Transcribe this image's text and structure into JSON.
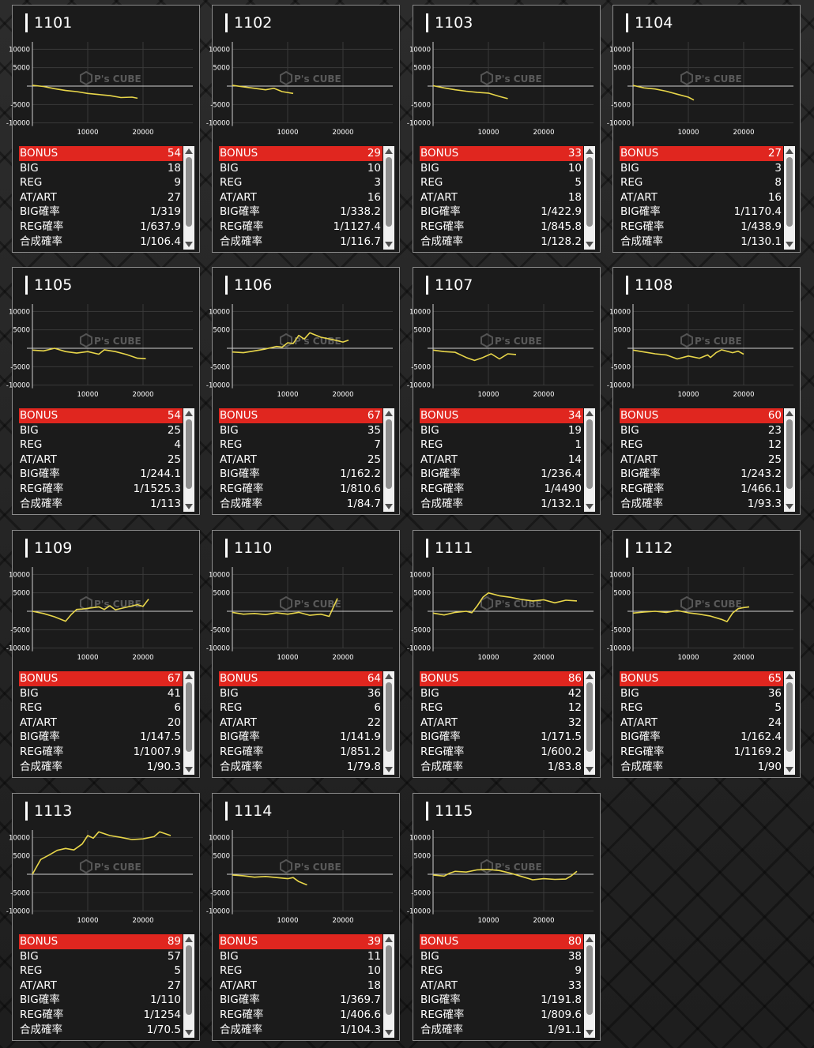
{
  "labels": {
    "bonus": "BONUS",
    "big": "BIG",
    "reg": "REG",
    "atart": "AT/ART",
    "big_rate": "BIG確率",
    "reg_rate": "REG確率",
    "total_rate": "合成確率"
  },
  "graph": {
    "y_ticks": [
      "10000",
      "5000",
      "-5000",
      "-10000"
    ],
    "x_ticks": [
      "10000",
      "20000"
    ],
    "watermark": "P's CUBE",
    "line_color": "#e8d64a",
    "bonus_color": "#e0261f"
  },
  "machines": [
    {
      "id": "1101",
      "bonus": "54",
      "big": "18",
      "reg": "9",
      "atart": "27",
      "big_rate": "1/319",
      "reg_rate": "1/637.9",
      "total_rate": "1/106.4",
      "series": [
        [
          0,
          200
        ],
        [
          2000,
          -100
        ],
        [
          4000,
          -700
        ],
        [
          6000,
          -1200
        ],
        [
          8000,
          -1500
        ],
        [
          10000,
          -2000
        ],
        [
          12000,
          -2300
        ],
        [
          14000,
          -2600
        ],
        [
          16000,
          -3100
        ],
        [
          18000,
          -3000
        ],
        [
          19000,
          -3300
        ]
      ]
    },
    {
      "id": "1102",
      "bonus": "29",
      "big": "10",
      "reg": "3",
      "atart": "16",
      "big_rate": "1/338.2",
      "reg_rate": "1/1127.4",
      "total_rate": "1/116.7",
      "series": [
        [
          0,
          200
        ],
        [
          2000,
          -200
        ],
        [
          4000,
          -600
        ],
        [
          6000,
          -1000
        ],
        [
          7500,
          -600
        ],
        [
          9000,
          -1500
        ],
        [
          11000,
          -2000
        ]
      ]
    },
    {
      "id": "1103",
      "bonus": "33",
      "big": "10",
      "reg": "5",
      "atart": "18",
      "big_rate": "1/422.9",
      "reg_rate": "1/845.8",
      "total_rate": "1/128.2",
      "series": [
        [
          0,
          100
        ],
        [
          2000,
          -500
        ],
        [
          4000,
          -1000
        ],
        [
          6000,
          -1400
        ],
        [
          8000,
          -1700
        ],
        [
          10000,
          -1900
        ],
        [
          12000,
          -2800
        ],
        [
          13500,
          -3400
        ]
      ]
    },
    {
      "id": "1104",
      "bonus": "27",
      "big": "3",
      "reg": "8",
      "atart": "16",
      "big_rate": "1/1170.4",
      "reg_rate": "1/438.9",
      "total_rate": "1/130.1",
      "series": [
        [
          0,
          200
        ],
        [
          2000,
          -500
        ],
        [
          4000,
          -800
        ],
        [
          6000,
          -1400
        ],
        [
          8000,
          -2200
        ],
        [
          10000,
          -3000
        ],
        [
          11000,
          -3800
        ]
      ]
    },
    {
      "id": "1105",
      "bonus": "54",
      "big": "25",
      "reg": "4",
      "atart": "25",
      "big_rate": "1/244.1",
      "reg_rate": "1/1525.3",
      "total_rate": "1/113",
      "series": [
        [
          0,
          -500
        ],
        [
          2000,
          -700
        ],
        [
          4000,
          0
        ],
        [
          6000,
          -900
        ],
        [
          8000,
          -1300
        ],
        [
          10000,
          -900
        ],
        [
          12000,
          -1600
        ],
        [
          13000,
          -400
        ],
        [
          15000,
          -900
        ],
        [
          17000,
          -1700
        ],
        [
          19000,
          -2700
        ],
        [
          20500,
          -2800
        ]
      ]
    },
    {
      "id": "1106",
      "bonus": "67",
      "big": "35",
      "reg": "7",
      "atart": "25",
      "big_rate": "1/162.2",
      "reg_rate": "1/810.6",
      "total_rate": "1/84.7",
      "series": [
        [
          0,
          -1000
        ],
        [
          2000,
          -1200
        ],
        [
          4000,
          -700
        ],
        [
          6000,
          -200
        ],
        [
          8000,
          500
        ],
        [
          9000,
          300
        ],
        [
          10000,
          1500
        ],
        [
          11000,
          1300
        ],
        [
          12000,
          3500
        ],
        [
          13000,
          2500
        ],
        [
          14000,
          4200
        ],
        [
          16000,
          3000
        ],
        [
          18000,
          2400
        ],
        [
          20000,
          1700
        ],
        [
          21000,
          2200
        ]
      ]
    },
    {
      "id": "1107",
      "bonus": "34",
      "big": "19",
      "reg": "1",
      "atart": "14",
      "big_rate": "1/236.4",
      "reg_rate": "1/4490",
      "total_rate": "1/132.1",
      "series": [
        [
          0,
          -500
        ],
        [
          2000,
          -900
        ],
        [
          4000,
          -1100
        ],
        [
          6000,
          -2500
        ],
        [
          7500,
          -3300
        ],
        [
          9000,
          -2500
        ],
        [
          10500,
          -1500
        ],
        [
          12000,
          -2900
        ],
        [
          13500,
          -1500
        ],
        [
          15000,
          -1700
        ]
      ]
    },
    {
      "id": "1108",
      "bonus": "60",
      "big": "23",
      "reg": "12",
      "atart": "25",
      "big_rate": "1/243.2",
      "reg_rate": "1/466.1",
      "total_rate": "1/93.3",
      "series": [
        [
          0,
          -500
        ],
        [
          2000,
          -1000
        ],
        [
          4000,
          -1500
        ],
        [
          6000,
          -1800
        ],
        [
          8000,
          -2900
        ],
        [
          10000,
          -2100
        ],
        [
          12000,
          -2700
        ],
        [
          13500,
          -1800
        ],
        [
          14000,
          -2500
        ],
        [
          15000,
          -1200
        ],
        [
          16000,
          -400
        ],
        [
          18000,
          -1200
        ],
        [
          19000,
          -800
        ],
        [
          20000,
          -1600
        ]
      ]
    },
    {
      "id": "1109",
      "bonus": "67",
      "big": "41",
      "reg": "6",
      "atart": "20",
      "big_rate": "1/147.5",
      "reg_rate": "1/1007.9",
      "total_rate": "1/90.3",
      "series": [
        [
          0,
          0
        ],
        [
          2000,
          -600
        ],
        [
          4000,
          -1500
        ],
        [
          6000,
          -2700
        ],
        [
          7000,
          -900
        ],
        [
          8000,
          500
        ],
        [
          9000,
          600
        ],
        [
          10000,
          800
        ],
        [
          12000,
          1200
        ],
        [
          13000,
          500
        ],
        [
          14000,
          1500
        ],
        [
          15000,
          400
        ],
        [
          17000,
          1100
        ],
        [
          19000,
          1800
        ],
        [
          20000,
          1300
        ],
        [
          21000,
          3300
        ]
      ]
    },
    {
      "id": "1110",
      "bonus": "64",
      "big": "36",
      "reg": "6",
      "atart": "22",
      "big_rate": "1/141.9",
      "reg_rate": "1/851.2",
      "total_rate": "1/79.8",
      "series": [
        [
          0,
          -300
        ],
        [
          2000,
          -800
        ],
        [
          4000,
          -600
        ],
        [
          6000,
          -900
        ],
        [
          8000,
          -400
        ],
        [
          10000,
          -800
        ],
        [
          12000,
          -300
        ],
        [
          14000,
          -1100
        ],
        [
          16000,
          -800
        ],
        [
          17500,
          -1400
        ],
        [
          19000,
          3500
        ]
      ]
    },
    {
      "id": "1111",
      "bonus": "86",
      "big": "42",
      "reg": "12",
      "atart": "32",
      "big_rate": "1/171.5",
      "reg_rate": "1/600.2",
      "total_rate": "1/83.8",
      "series": [
        [
          0,
          -500
        ],
        [
          2000,
          -1000
        ],
        [
          4000,
          -300
        ],
        [
          6000,
          0
        ],
        [
          7000,
          -400
        ],
        [
          8000,
          1500
        ],
        [
          9000,
          3800
        ],
        [
          10000,
          5000
        ],
        [
          12000,
          4200
        ],
        [
          14000,
          3800
        ],
        [
          16000,
          3200
        ],
        [
          18000,
          2800
        ],
        [
          20000,
          3100
        ],
        [
          22000,
          2300
        ],
        [
          24000,
          3000
        ],
        [
          26000,
          2800
        ]
      ]
    },
    {
      "id": "1112",
      "bonus": "65",
      "big": "36",
      "reg": "5",
      "atart": "24",
      "big_rate": "1/162.4",
      "reg_rate": "1/1169.2",
      "total_rate": "1/90",
      "series": [
        [
          0,
          -500
        ],
        [
          2000,
          -200
        ],
        [
          4000,
          0
        ],
        [
          6000,
          -300
        ],
        [
          8000,
          200
        ],
        [
          10000,
          -400
        ],
        [
          12000,
          -800
        ],
        [
          14000,
          -1300
        ],
        [
          16000,
          -2200
        ],
        [
          17000,
          -2800
        ],
        [
          18000,
          -500
        ],
        [
          19000,
          700
        ],
        [
          20000,
          1000
        ],
        [
          21000,
          1200
        ]
      ]
    },
    {
      "id": "1113",
      "bonus": "89",
      "big": "57",
      "reg": "5",
      "atart": "27",
      "big_rate": "1/110",
      "reg_rate": "1/1254",
      "total_rate": "1/70.5",
      "series": [
        [
          0,
          0
        ],
        [
          1500,
          4000
        ],
        [
          3000,
          5200
        ],
        [
          4500,
          6500
        ],
        [
          6000,
          7000
        ],
        [
          7500,
          6600
        ],
        [
          9000,
          8200
        ],
        [
          10000,
          10500
        ],
        [
          11000,
          9800
        ],
        [
          12000,
          11500
        ],
        [
          14000,
          10500
        ],
        [
          16000,
          10000
        ],
        [
          18000,
          9400
        ],
        [
          20000,
          9600
        ],
        [
          22000,
          10200
        ],
        [
          23000,
          11500
        ],
        [
          25000,
          10500
        ]
      ]
    },
    {
      "id": "1114",
      "bonus": "39",
      "big": "11",
      "reg": "10",
      "atart": "18",
      "big_rate": "1/369.7",
      "reg_rate": "1/406.6",
      "total_rate": "1/104.3",
      "series": [
        [
          0,
          -200
        ],
        [
          2000,
          -400
        ],
        [
          4000,
          -800
        ],
        [
          6000,
          -600
        ],
        [
          8000,
          -900
        ],
        [
          10000,
          -1200
        ],
        [
          11000,
          -900
        ],
        [
          12000,
          -2000
        ],
        [
          13000,
          -2600
        ],
        [
          13500,
          -2900
        ]
      ]
    },
    {
      "id": "1115",
      "bonus": "80",
      "big": "38",
      "reg": "9",
      "atart": "33",
      "big_rate": "1/191.8",
      "reg_rate": "1/809.6",
      "total_rate": "1/91.1",
      "series": [
        [
          0,
          -200
        ],
        [
          2000,
          -500
        ],
        [
          3000,
          300
        ],
        [
          4000,
          800
        ],
        [
          6000,
          600
        ],
        [
          8000,
          1200
        ],
        [
          10000,
          1300
        ],
        [
          12000,
          1000
        ],
        [
          14000,
          300
        ],
        [
          16000,
          -600
        ],
        [
          18000,
          -1500
        ],
        [
          20000,
          -1200
        ],
        [
          22000,
          -1400
        ],
        [
          24000,
          -1300
        ],
        [
          25000,
          -400
        ],
        [
          26000,
          800
        ]
      ]
    }
  ]
}
